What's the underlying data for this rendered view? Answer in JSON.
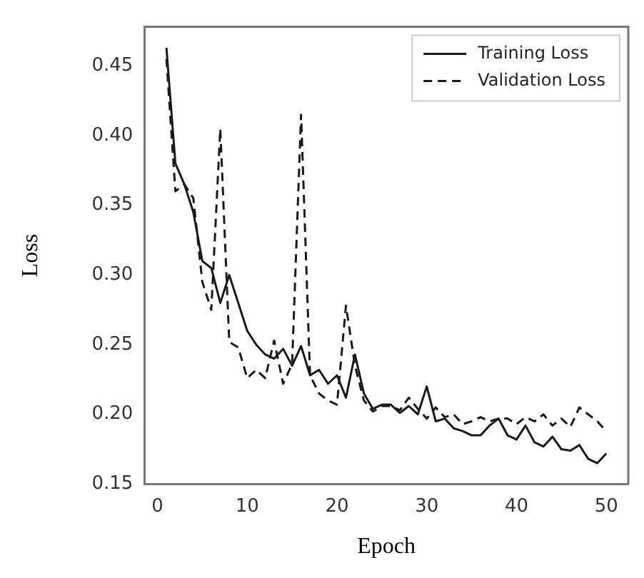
{
  "chart_data": {
    "type": "line",
    "xlabel": "Epoch",
    "ylabel": "Loss",
    "x": [
      1,
      2,
      3,
      4,
      5,
      6,
      7,
      8,
      9,
      10,
      11,
      12,
      13,
      14,
      15,
      16,
      17,
      18,
      19,
      20,
      21,
      22,
      23,
      24,
      25,
      26,
      27,
      28,
      29,
      30,
      31,
      32,
      33,
      34,
      35,
      36,
      37,
      38,
      39,
      40,
      41,
      42,
      43,
      44,
      45,
      46,
      47,
      48,
      49,
      50
    ],
    "series": [
      {
        "name": "Training Loss",
        "color": "#1a1a1a",
        "line_style": "solid",
        "values": [
          0.463,
          0.38,
          0.365,
          0.345,
          0.31,
          0.305,
          0.28,
          0.3,
          0.28,
          0.26,
          0.25,
          0.243,
          0.24,
          0.247,
          0.235,
          0.249,
          0.228,
          0.232,
          0.222,
          0.228,
          0.212,
          0.243,
          0.215,
          0.204,
          0.207,
          0.207,
          0.201,
          0.206,
          0.2,
          0.22,
          0.195,
          0.197,
          0.19,
          0.188,
          0.185,
          0.185,
          0.192,
          0.197,
          0.185,
          0.182,
          0.192,
          0.18,
          0.177,
          0.184,
          0.175,
          0.174,
          0.178,
          0.168,
          0.165,
          0.172
        ]
      },
      {
        "name": "Validation Loss",
        "color": "#1a1a1a",
        "line_style": "dashed",
        "values": [
          0.455,
          0.36,
          0.365,
          0.355,
          0.295,
          0.275,
          0.405,
          0.252,
          0.248,
          0.226,
          0.232,
          0.226,
          0.253,
          0.222,
          0.236,
          0.415,
          0.228,
          0.215,
          0.21,
          0.207,
          0.278,
          0.235,
          0.21,
          0.202,
          0.206,
          0.206,
          0.203,
          0.212,
          0.204,
          0.197,
          0.205,
          0.198,
          0.2,
          0.193,
          0.195,
          0.198,
          0.195,
          0.197,
          0.197,
          0.193,
          0.198,
          0.195,
          0.2,
          0.192,
          0.197,
          0.191,
          0.205,
          0.2,
          0.195,
          0.188
        ]
      }
    ],
    "xlim": [
      -1.45,
      52.45
    ],
    "xticks": [
      0,
      10,
      20,
      30,
      40,
      50
    ],
    "ylim": [
      0.15,
      0.478
    ],
    "yticks": [
      0.15,
      {
        "value": 0.2,
        "label": "0.20"
      },
      0.25,
      {
        "value": 0.3,
        "label": "0.30"
      },
      0.35,
      {
        "value": 0.4,
        "label": "0.40"
      },
      0.45
    ],
    "grid": false,
    "legend": "top right",
    "marker": "none"
  }
}
